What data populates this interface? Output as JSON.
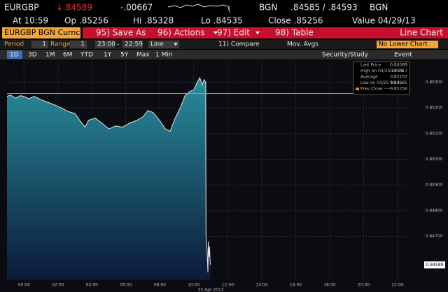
{
  "header": {
    "ticker": "EURGBP",
    "last": "↓.84589",
    "change": "-.00667",
    "source": "BGN",
    "bid_ask": ".84585 / .84593",
    "source2": "BGN",
    "time": "At 10:59",
    "open": "Op .85256",
    "high": "Hi .85328",
    "low": "Lo .84535",
    "close": "Close .85256",
    "value": "Value 04/29/13"
  },
  "menu": {
    "security": "EURGBP BGN Curnc",
    "items": [
      "95) Save As",
      "96) Actions",
      "97) Edit",
      "98) Table"
    ],
    "view": "Line Chart"
  },
  "settings": {
    "period_label": "Period",
    "period": "1",
    "range_label": "Range",
    "range": "1",
    "start": "23:00",
    "dash": "-",
    "end": "22:59",
    "style": "Line",
    "compare": "11) Compare",
    "mov_avgs": "Mov. Avgs",
    "lower": "No Lower Chart"
  },
  "toolbar": {
    "ranges": [
      "1D",
      "3D",
      "1M",
      "6M",
      "YTD",
      "1Y",
      "5Y",
      "Max"
    ],
    "interval": "1 Min",
    "security_study": "Security/Study",
    "event": "Event"
  },
  "chart_data": {
    "type": "line",
    "color": "#e6e6e6",
    "area_color": "#2a8c9c",
    "grid": true,
    "x": [
      -1.0,
      -0.8,
      -0.5,
      -0.2,
      0.0,
      0.3,
      0.6,
      1.0,
      1.4,
      1.8,
      2.2,
      2.6,
      3.0,
      3.3,
      3.6,
      3.8,
      4.2,
      4.6,
      5.0,
      5.4,
      5.8,
      6.2,
      6.6,
      7.0,
      7.3,
      7.6,
      8.0,
      8.3,
      8.6,
      8.9,
      9.2,
      9.5,
      9.8,
      10.0,
      10.2,
      10.35,
      10.5,
      10.6,
      10.7,
      10.72,
      10.78,
      10.83,
      10.86,
      10.9,
      10.93,
      10.97
    ],
    "values": [
      0.85245,
      0.8525,
      0.85238,
      0.85248,
      0.85244,
      0.85236,
      0.85245,
      0.85232,
      0.85222,
      0.85212,
      0.852,
      0.85186,
      0.85178,
      0.8515,
      0.85125,
      0.85152,
      0.8516,
      0.8514,
      0.85118,
      0.8513,
      0.85125,
      0.8514,
      0.8515,
      0.85165,
      0.8519,
      0.85182,
      0.8515,
      0.8512,
      0.85108,
      0.8516,
      0.852,
      0.8525,
      0.85265,
      0.8527,
      0.853,
      0.85317,
      0.8529,
      0.8531,
      0.853,
      0.847,
      0.8465,
      0.8456,
      0.8468,
      0.8462,
      0.8466,
      0.84589
    ],
    "xlim": [
      -1,
      22.7
    ],
    "ylim": [
      0.8453,
      0.8538
    ],
    "xticks": [
      {
        "value": 0,
        "label": "00:00"
      },
      {
        "value": 2,
        "label": "02:00"
      },
      {
        "value": 4,
        "label": "04:00"
      },
      {
        "value": 6,
        "label": "06:00"
      },
      {
        "value": 8,
        "label": "08:00"
      },
      {
        "value": 10,
        "label": "10:00"
      },
      {
        "value": 12,
        "label": "12:00"
      },
      {
        "value": 14,
        "label": "14:00"
      },
      {
        "value": 16,
        "label": "16:00"
      },
      {
        "value": 18,
        "label": "18:00"
      },
      {
        "value": 20,
        "label": "20:00"
      },
      {
        "value": 22,
        "label": "22:00"
      }
    ],
    "yticks": [
      {
        "value": 0.847,
        "label": "0.84700"
      },
      {
        "value": 0.848,
        "label": "0.84800"
      },
      {
        "value": 0.849,
        "label": "0.84900"
      },
      {
        "value": 0.85,
        "label": "0.85000"
      },
      {
        "value": 0.851,
        "label": "0.85100"
      },
      {
        "value": 0.852,
        "label": "0.85200"
      },
      {
        "value": 0.853,
        "label": "0.85300"
      }
    ],
    "date_label": "25 Apr 2013",
    "last_tag": {
      "value": 0.84589,
      "label": "0.84589"
    },
    "reference_line": {
      "name": "Prev Close ------",
      "value": 0.85256,
      "value_label": "0.85256",
      "color": "#e8841a"
    },
    "legend": [
      {
        "label": "Last Price",
        "value": "0.84589"
      },
      {
        "label": "High on 04/25 10:19",
        "value": "0.85317"
      },
      {
        "label": "Average",
        "value": "0.85167"
      },
      {
        "label": "Low on 04/25 10:35",
        "value": "0.84585"
      }
    ]
  }
}
